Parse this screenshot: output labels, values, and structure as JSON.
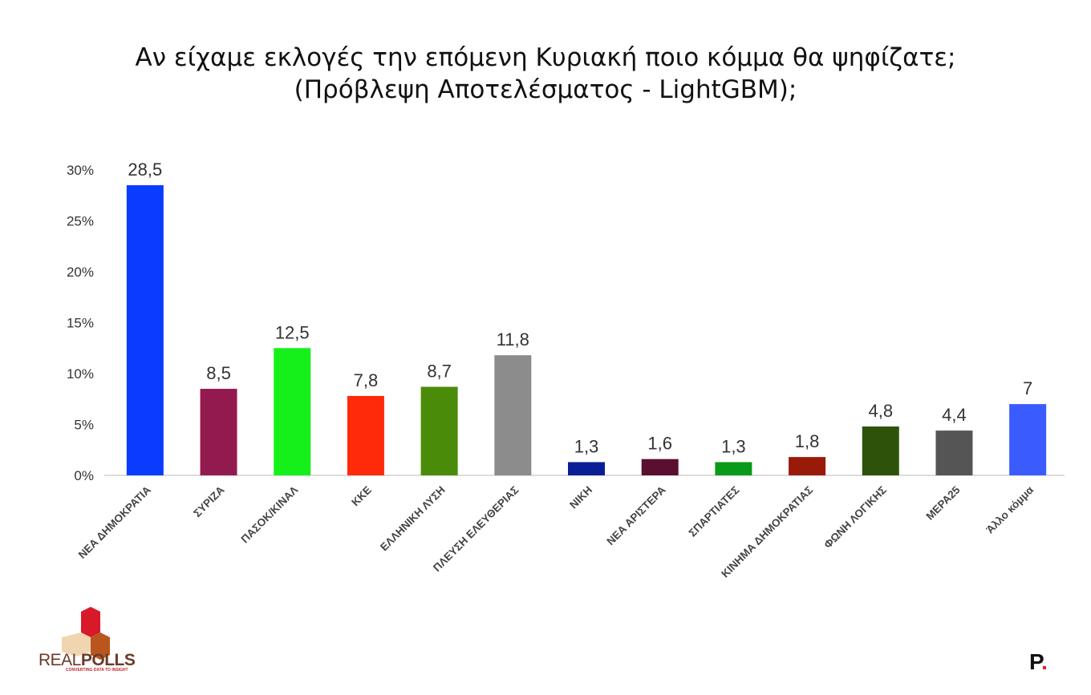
{
  "chart_data": {
    "type": "bar",
    "title": [
      "Αν είχαμε εκλογές την επόμενη Κυριακή ποιο κόμμα θα ψηφίζατε;",
      "(Πρόβλεψη Αποτελέσματος - LightGBM);"
    ],
    "categories": [
      "ΝΕΑ ΔΗΜΟΚΡΑΤΙΑ",
      "ΣΥΡΙΖΑ",
      "ΠΑΣΟΚ/ΚΙΝΑΛ",
      "ΚΚΕ",
      "ΕΛΛΗΝΙΚΗ ΛΥΣΗ",
      "ΠΛΕΥΣΗ ΕΛΕΥΘΕΡΙΑΣ",
      "ΝΙΚΗ",
      "ΝΕΑ ΑΡΙΣΤΕΡΑ",
      "ΣΠΑΡΤΙΑΤΕΣ",
      "ΚΙΝΗΜΑ ΔΗΜΟΚΡΑΤΙΑΣ",
      "ΦΩΝΗ ΛΟΓΙΚΗΣ",
      "ΜΕΡΑ25",
      "Άλλο κόμμα"
    ],
    "values": [
      28.5,
      8.5,
      12.5,
      7.8,
      8.7,
      11.8,
      1.3,
      1.6,
      1.3,
      1.8,
      4.8,
      4.4,
      7
    ],
    "data_labels": [
      "28,5",
      "8,5",
      "12,5",
      "7,8",
      "8,7",
      "11,8",
      "1,3",
      "1,6",
      "1,3",
      "1,8",
      "4,8",
      "4,4",
      "7"
    ],
    "colors": [
      "#0a3cff",
      "#931a4e",
      "#16f01a",
      "#ff2a0a",
      "#4a8c0a",
      "#8c8c8c",
      "#0a1f96",
      "#5a0f30",
      "#0a9a1a",
      "#9a1a0a",
      "#2e520a",
      "#555555",
      "#3a5cff"
    ],
    "yticks": [
      "0%",
      "5%",
      "10%",
      "15%",
      "20%",
      "25%",
      "30%"
    ],
    "ylim": [
      0,
      30
    ],
    "xlabel": "",
    "ylabel": "",
    "grid": false
  },
  "branding": {
    "logo": "REALPOLLS",
    "logo_tagline": "CONVERTING DATA TO INSIGHT",
    "corner_mark": "P."
  }
}
